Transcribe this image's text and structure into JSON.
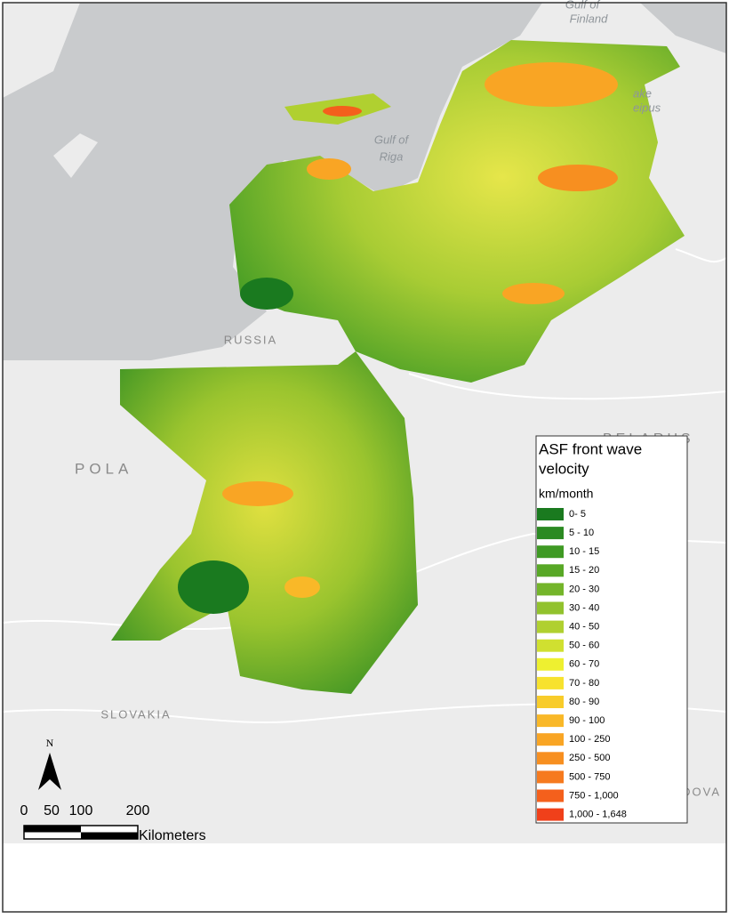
{
  "map": {
    "places": [
      "Gulf of",
      "Finland",
      "Gulf of",
      "Riga",
      "RUSSIA",
      "POLA",
      "BELARUS",
      "SLOVAKIA",
      "MOLDOVA",
      "ake",
      "eipus"
    ],
    "north": "N",
    "scale_bar": {
      "labels": [
        0,
        50,
        100,
        200
      ],
      "unit": "Kilometers"
    }
  },
  "legend": {
    "title": "ASF front wave",
    "title2": "velocity",
    "unit": "km/month",
    "classes": [
      {
        "label": "0- 5",
        "color": "#1a7a1f"
      },
      {
        "label": "5 - 10",
        "color": "#2b8a22"
      },
      {
        "label": "10 - 15",
        "color": "#3f9a24"
      },
      {
        "label": "15 - 20",
        "color": "#58a826"
      },
      {
        "label": "20 - 30",
        "color": "#74b52a"
      },
      {
        "label": "30 - 40",
        "color": "#92c22d"
      },
      {
        "label": "40 - 50",
        "color": "#b0d030"
      },
      {
        "label": "50 - 60",
        "color": "#d0e030"
      },
      {
        "label": "60 - 70",
        "color": "#eef030"
      },
      {
        "label": "70 - 80",
        "color": "#f7e22e"
      },
      {
        "label": "80 - 90",
        "color": "#f8cc2a"
      },
      {
        "label": "90 - 100",
        "color": "#f9b828"
      },
      {
        "label": "100 - 250",
        "color": "#f9a524"
      },
      {
        "label": "250 - 500",
        "color": "#f78f20"
      },
      {
        "label": "500 - 750",
        "color": "#f67a1e"
      },
      {
        "label": "750 - 1,000",
        "color": "#f4601c"
      },
      {
        "label": "1,000 - 1,648",
        "color": "#f0401a"
      }
    ]
  }
}
